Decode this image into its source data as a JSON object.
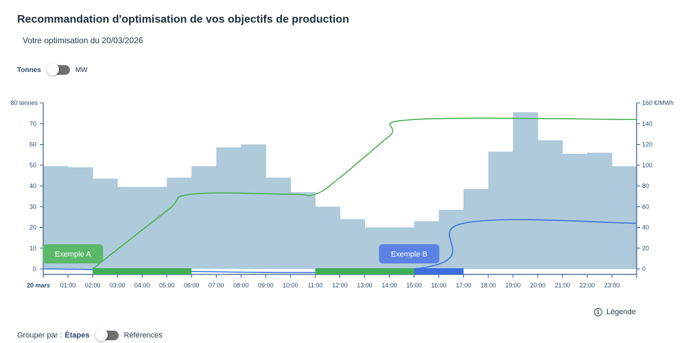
{
  "header": {
    "title": "Recommandation d'optimisation de vos objectifs de production",
    "subtitle": "Votre optimisation du 20/03/2026"
  },
  "unit_toggle": {
    "left_label": "Tonnes",
    "right_label": "MW",
    "selected": "Tonnes"
  },
  "group_toggle": {
    "prefix": "Grouper par :",
    "left_label": "Étapes",
    "right_label": "Références",
    "selected": "Étapes"
  },
  "legend_link": {
    "label": "Légende",
    "icon": "info-icon"
  },
  "colors": {
    "bars": "#aecadb",
    "axis": "#2d5a8a",
    "green": "#4caf50",
    "green_bar": "#3fae56",
    "green_callout": "#5cb86b",
    "blue": "#3b6fe0",
    "blue_callout": "#5b83e6"
  },
  "chart_data": {
    "type": "bar",
    "x_categories": [
      "20 mars",
      "01:00",
      "02:00",
      "03:00",
      "04:00",
      "05:00",
      "06:00",
      "07:00",
      "08:00",
      "09:00",
      "10:00",
      "11:00",
      "12:00",
      "13:00",
      "14:00",
      "15:00",
      "16:00",
      "17:00",
      "18:00",
      "19:00",
      "20:00",
      "21:00",
      "22:00",
      "23:00"
    ],
    "left_axis": {
      "ticks": [
        0,
        10,
        20,
        30,
        40,
        50,
        60,
        70,
        80
      ],
      "top_label": "80 tonnes",
      "ylim": [
        0,
        80
      ]
    },
    "right_axis": {
      "ticks": [
        0,
        20,
        40,
        60,
        80,
        100,
        120,
        140,
        160
      ],
      "top_label": "160 €/MWh",
      "ylim": [
        0,
        160
      ]
    },
    "series": [
      {
        "kind": "bar",
        "axis": "right",
        "values": [
          99,
          98,
          87,
          79,
          79,
          88,
          99,
          117,
          120,
          88,
          74,
          60,
          48,
          40,
          40,
          46,
          57,
          77,
          113,
          151,
          124,
          111,
          112,
          99
        ]
      },
      {
        "kind": "line",
        "axis": "left",
        "color": "green",
        "points": [
          [
            2,
            0
          ],
          [
            5,
            28
          ],
          [
            6,
            36
          ],
          [
            10,
            36
          ],
          [
            11,
            36
          ],
          [
            12,
            44
          ],
          [
            14,
            64
          ],
          [
            15,
            72
          ],
          [
            24,
            72
          ]
        ]
      },
      {
        "kind": "line",
        "axis": "left",
        "color": "blue",
        "points": [
          [
            0,
            0
          ],
          [
            15,
            0
          ],
          [
            17,
            22
          ],
          [
            24,
            22
          ]
        ]
      }
    ],
    "segments": [
      {
        "start": 2,
        "end": 6,
        "color": "green"
      },
      {
        "start": 11,
        "end": 15,
        "color": "green"
      },
      {
        "start": 15,
        "end": 17,
        "color": "blue"
      }
    ],
    "callouts": [
      {
        "label": "Exemple A",
        "anchor_hour": 1.2,
        "color": "green"
      },
      {
        "label": "Exemple B",
        "anchor_hour": 14.8,
        "color": "blue"
      }
    ]
  }
}
